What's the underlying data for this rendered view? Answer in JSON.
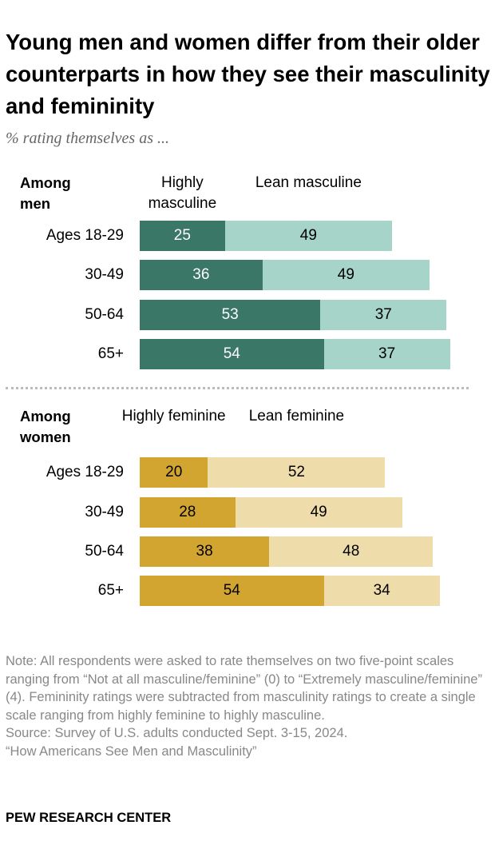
{
  "title": "Young men and women differ from their older counterparts in how they see their masculinity and femininity",
  "subtitle": "% rating themselves as ...",
  "colors": {
    "men_high": "#3a7766",
    "men_lean": "#a6d4c8",
    "women_high": "#d2a530",
    "women_lean": "#eedcab"
  },
  "chart_data": [
    {
      "type": "bar",
      "orientation": "horizontal",
      "stacked": true,
      "group_label": "Among men",
      "categories": [
        "Ages 18-29",
        "30-49",
        "50-64",
        "65+"
      ],
      "series": [
        {
          "name": "Highly masculine",
          "values": [
            25,
            36,
            53,
            54
          ]
        },
        {
          "name": "Lean masculine",
          "values": [
            49,
            49,
            37,
            37
          ]
        }
      ]
    },
    {
      "type": "bar",
      "orientation": "horizontal",
      "stacked": true,
      "group_label": "Among women",
      "categories": [
        "Ages 18-29",
        "30-49",
        "50-64",
        "65+"
      ],
      "series": [
        {
          "name": "Highly feminine",
          "values": [
            20,
            28,
            38,
            54
          ]
        },
        {
          "name": "Lean feminine",
          "values": [
            52,
            49,
            48,
            34
          ]
        }
      ]
    }
  ],
  "note": "Note: All respondents were asked to rate themselves on two five-point scales ranging from “Not at all masculine/feminine” (0) to “Extremely masculine/feminine” (4). Femininity ratings were subtracted from masculinity ratings to create a single scale ranging from highly feminine to highly masculine.",
  "source": "Source: Survey of U.S. adults conducted Sept. 3-15, 2024.",
  "report": "“How Americans See Men and Masculinity”",
  "logo": "PEW RESEARCH CENTER"
}
